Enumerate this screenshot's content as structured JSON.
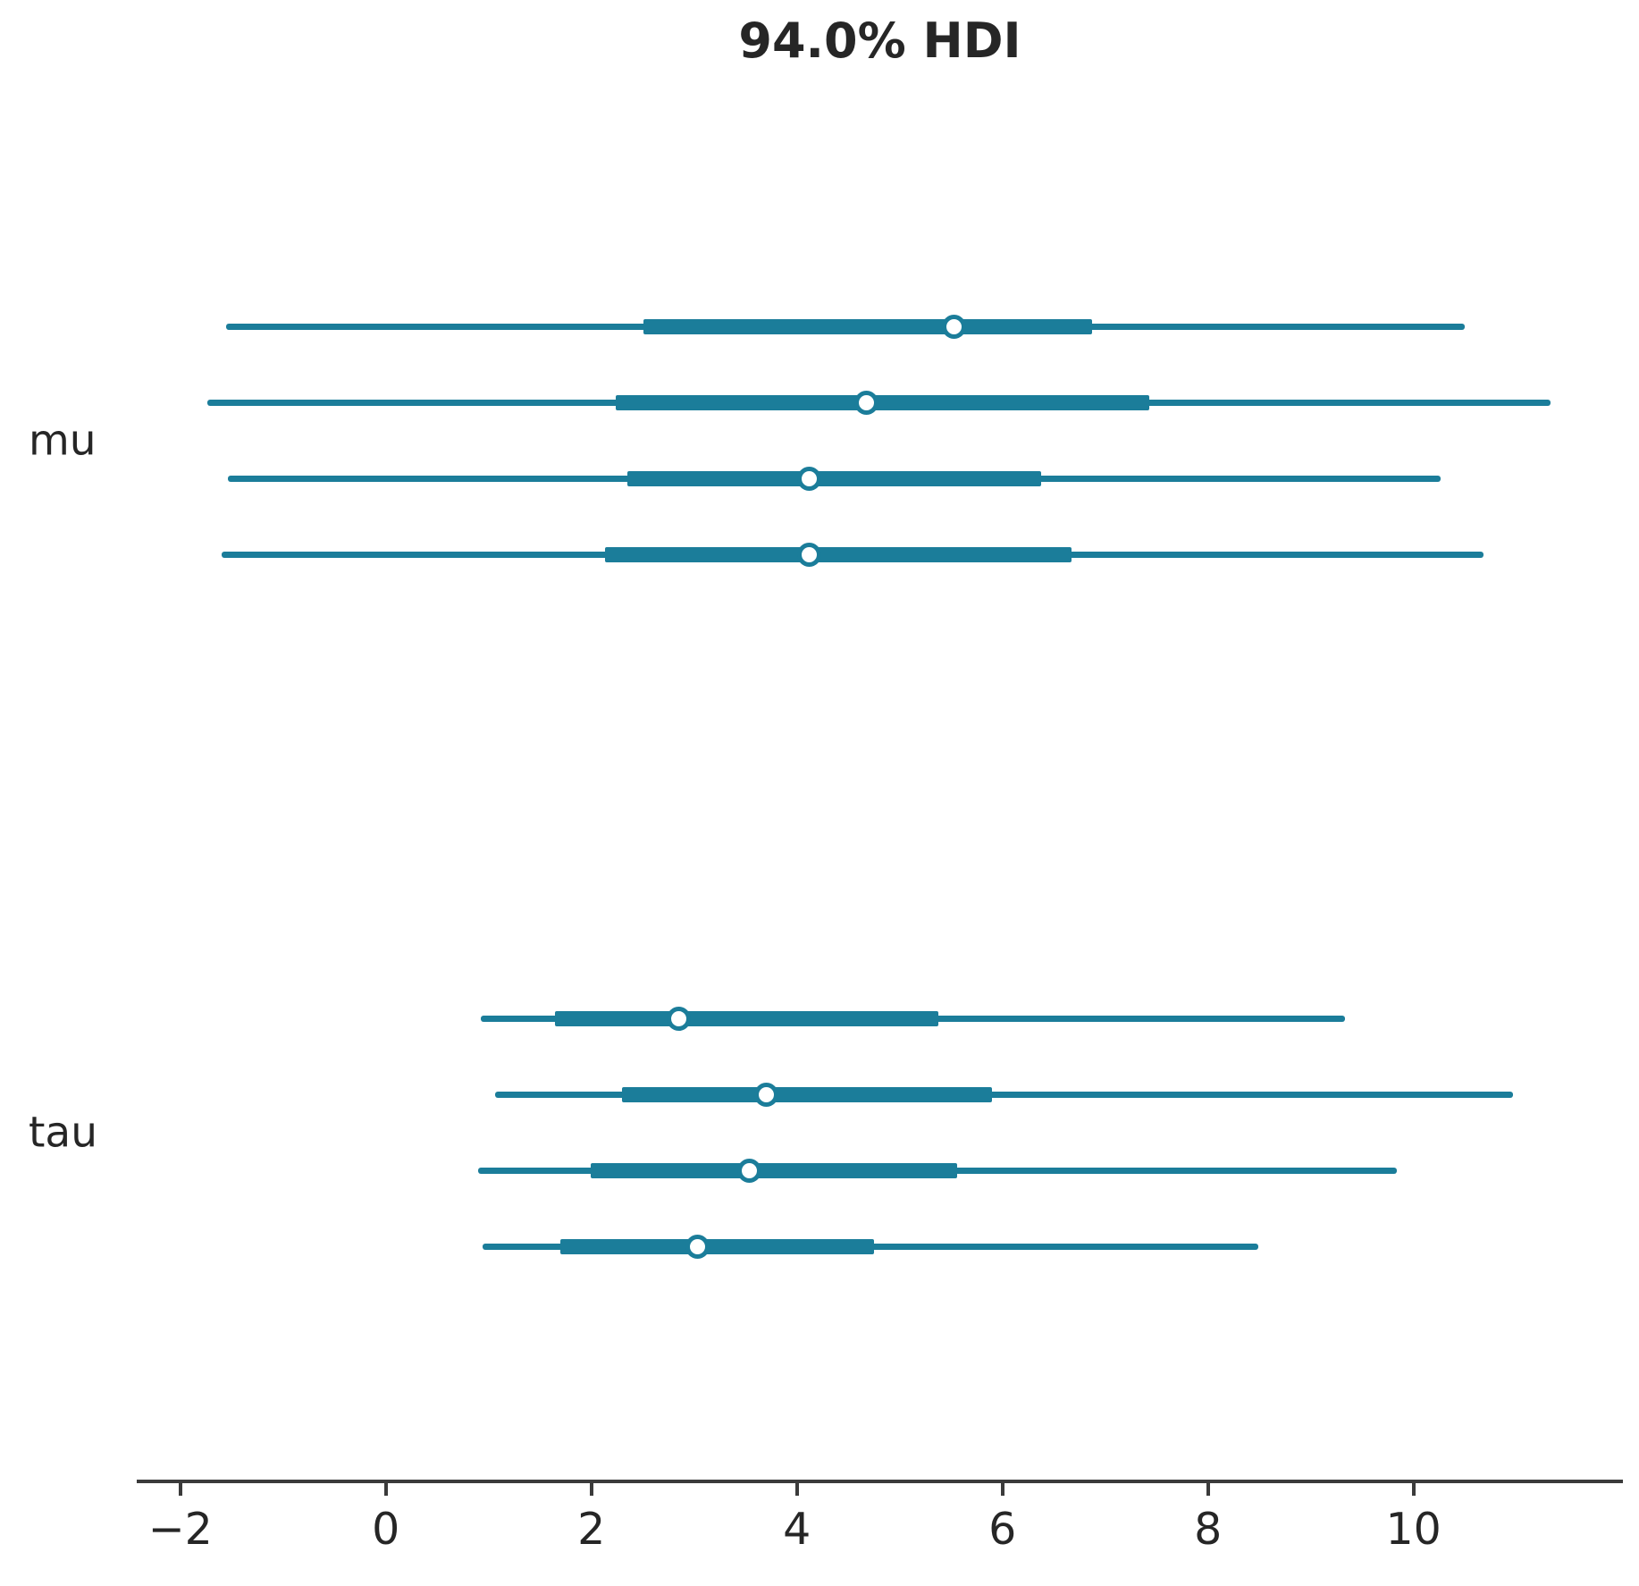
{
  "title": "94.0% HDI",
  "chart_data": {
    "type": "forest",
    "title": "94.0% HDI",
    "hdi_probability": "94.0%",
    "orientation": "horizontal",
    "xlabel": "",
    "ylabel": "",
    "x_ticks": [
      -2,
      0,
      2,
      4,
      6,
      8,
      10
    ],
    "xlim": [
      -2.42,
      12.05
    ],
    "grid": "off",
    "legend_position": "none",
    "variables": [
      {
        "name": "mu",
        "chains": [
          {
            "hdi_low": -1.55,
            "quartile_low": 2.51,
            "median": 5.53,
            "quartile_high": 6.87,
            "hdi_high": 10.5
          },
          {
            "hdi_low": -1.74,
            "quartile_low": 2.24,
            "median": 4.68,
            "quartile_high": 7.43,
            "hdi_high": 11.33
          },
          {
            "hdi_low": -1.54,
            "quartile_low": 2.35,
            "median": 4.12,
            "quartile_high": 6.38,
            "hdi_high": 10.26
          },
          {
            "hdi_low": -1.6,
            "quartile_low": 2.13,
            "median": 4.12,
            "quartile_high": 6.67,
            "hdi_high": 10.68
          }
        ]
      },
      {
        "name": "tau",
        "chains": [
          {
            "hdi_low": 0.92,
            "quartile_low": 1.65,
            "median": 2.85,
            "quartile_high": 5.38,
            "hdi_high": 9.33
          },
          {
            "hdi_low": 1.06,
            "quartile_low": 2.3,
            "median": 3.7,
            "quartile_high": 5.9,
            "hdi_high": 10.97
          },
          {
            "hdi_low": 0.9,
            "quartile_low": 1.99,
            "median": 3.54,
            "quartile_high": 5.56,
            "hdi_high": 9.84
          },
          {
            "hdi_low": 0.94,
            "quartile_low": 1.7,
            "median": 3.03,
            "quartile_high": 4.75,
            "hdi_high": 8.49
          }
        ]
      }
    ],
    "colors": {
      "interval": "#1b7d9a",
      "marker_fill": "#ffffff",
      "axis": "#3b3b3b",
      "text": "#262626"
    }
  }
}
